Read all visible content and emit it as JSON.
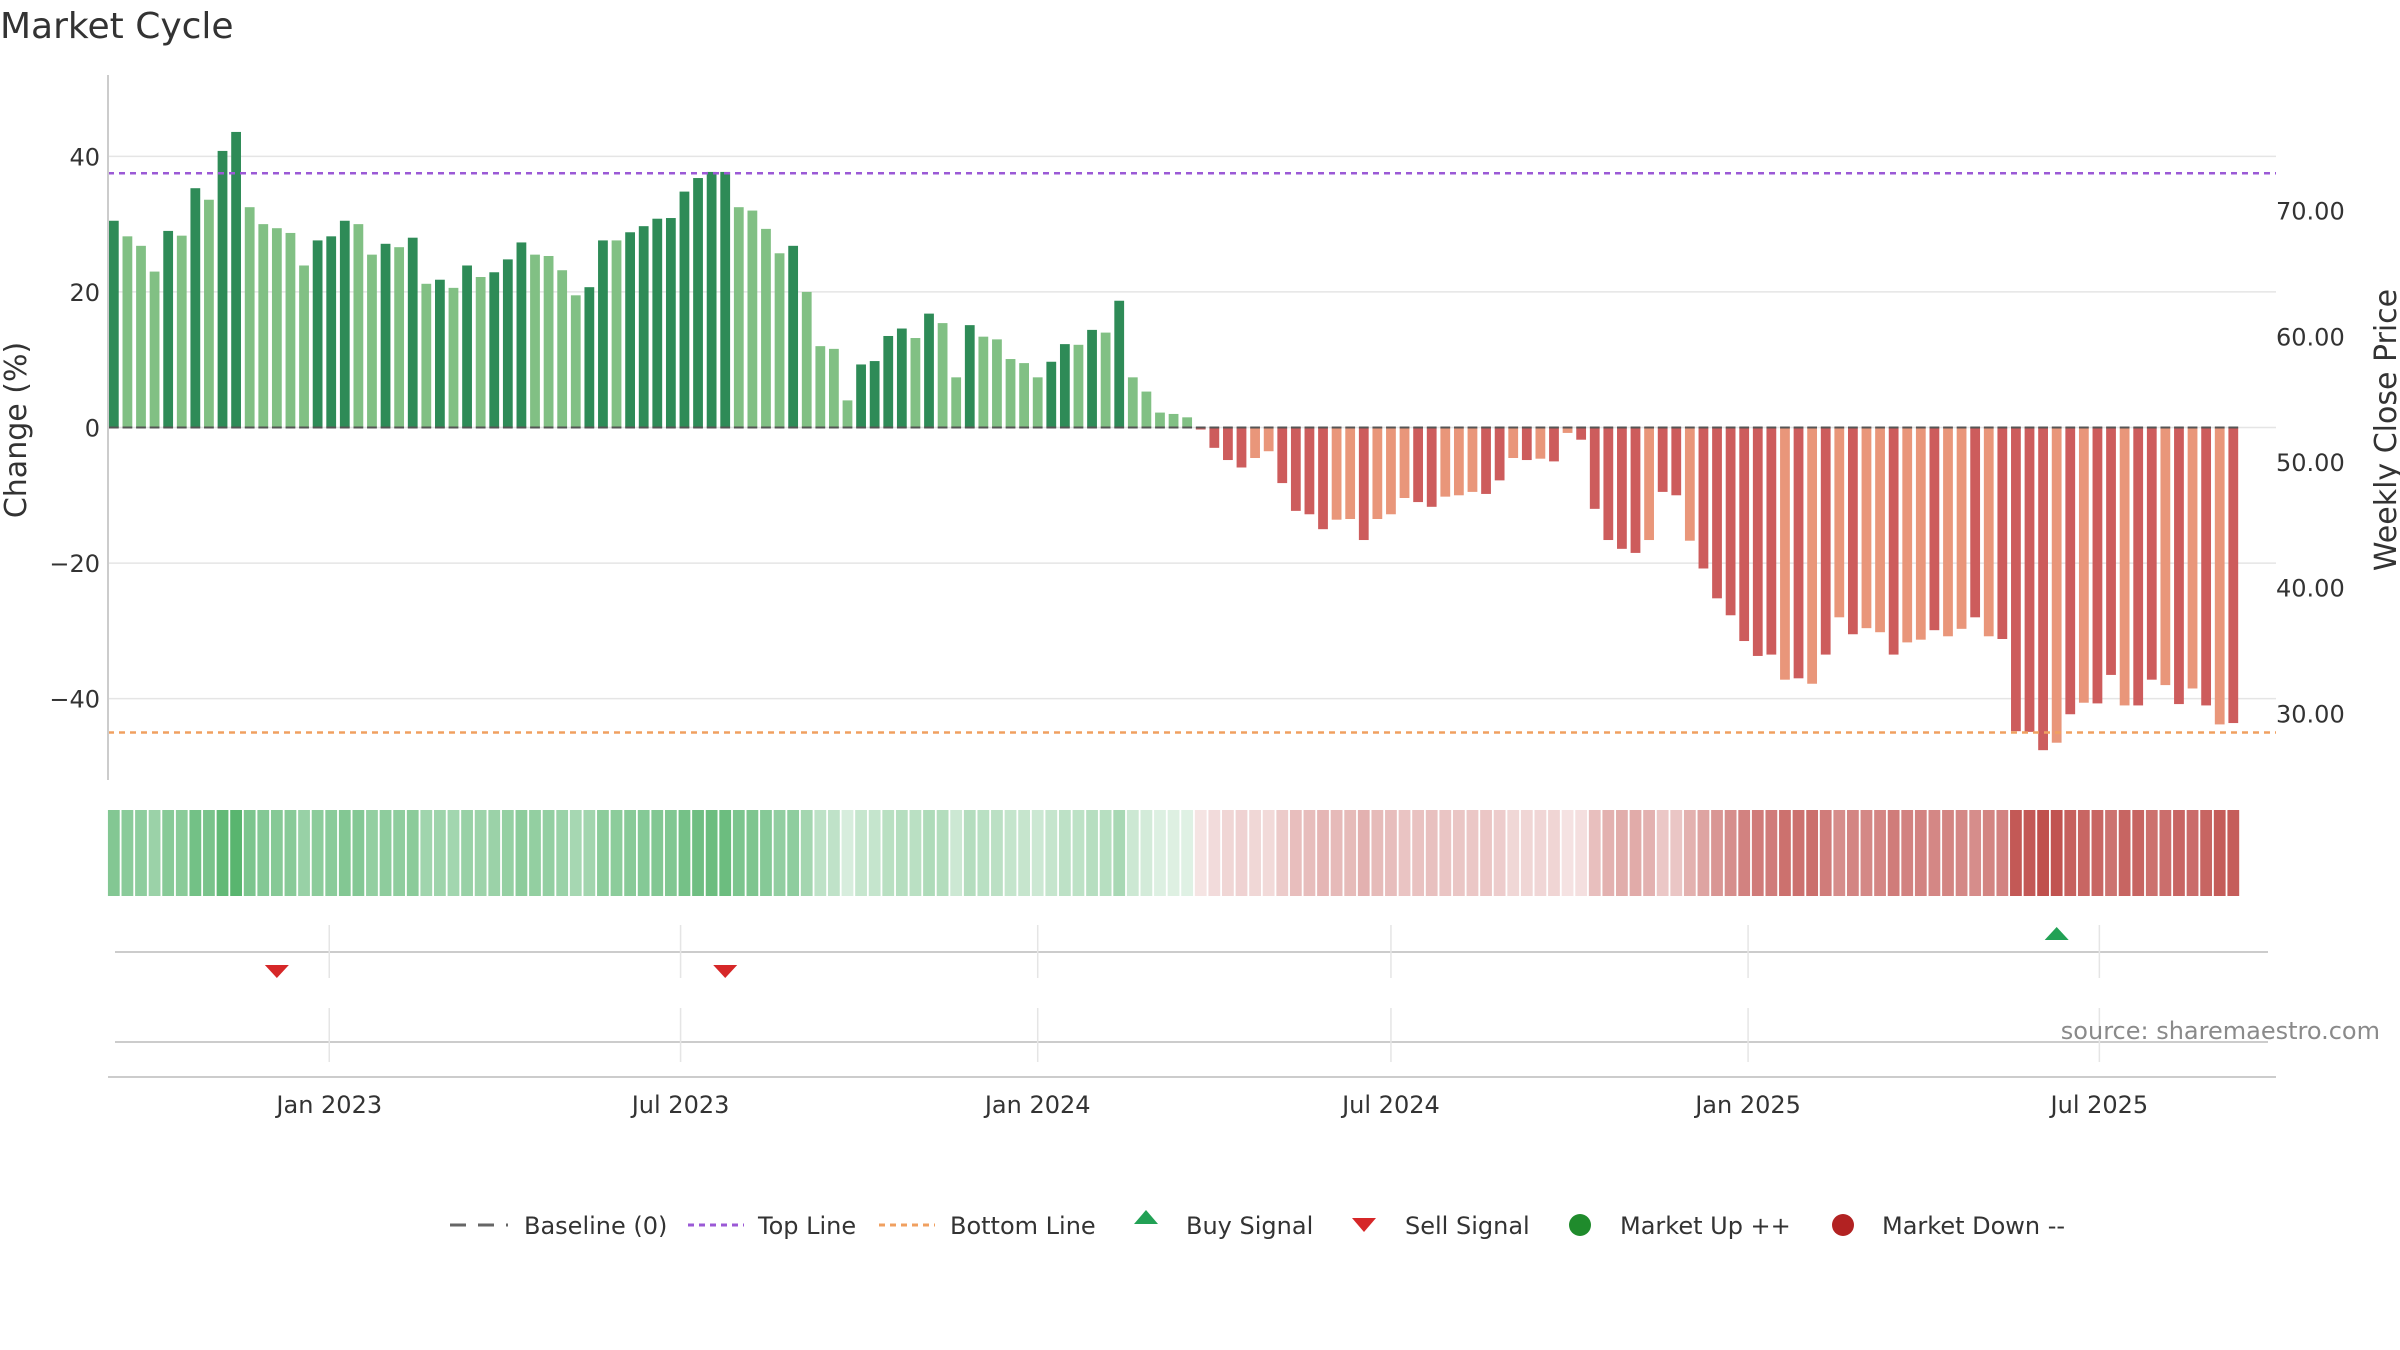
{
  "chart_data": {
    "type": "bar",
    "title": "Market Cycle",
    "ylabel_left": "Change (%)",
    "ylabel_right": "Weekly Close Price",
    "ylim": [
      -52,
      52
    ],
    "yticks": [
      40,
      20,
      0,
      -20,
      -40
    ],
    "ytick_labels": [
      "40",
      "20",
      "0",
      "−20",
      "−40"
    ],
    "right_ylim": [
      24.7,
      80.8
    ],
    "right_ticks": [
      70,
      60,
      50,
      40,
      30
    ],
    "right_tick_labels": [
      "70.00",
      "60.00",
      "50.00",
      "40.00",
      "30.00"
    ],
    "top_line": 37.5,
    "bottom_line": -45,
    "x_start": "2022-09-12",
    "x_step_days": 7,
    "xlim": [
      "2022-09-09",
      "2025-09-30"
    ],
    "x_ticks": [
      {
        "date": "2023-01-01",
        "label": "Jan 2023"
      },
      {
        "date": "2023-07-01",
        "label": "Jul 2023"
      },
      {
        "date": "2024-01-01",
        "label": "Jan 2024"
      },
      {
        "date": "2024-07-01",
        "label": "Jul 2024"
      },
      {
        "date": "2025-01-01",
        "label": "Jan 2025"
      },
      {
        "date": "2025-07-01",
        "label": "Jul 2025"
      }
    ],
    "values": [
      30.5,
      28.2,
      26.8,
      23.0,
      29.0,
      28.3,
      35.3,
      33.6,
      40.8,
      43.6,
      32.5,
      30.0,
      29.4,
      28.7,
      23.9,
      27.6,
      28.2,
      30.5,
      30.0,
      25.5,
      27.1,
      26.6,
      28.0,
      21.2,
      21.8,
      20.6,
      23.9,
      22.2,
      22.9,
      24.8,
      27.3,
      25.5,
      25.3,
      23.2,
      19.5,
      20.7,
      27.6,
      27.6,
      28.8,
      29.7,
      30.8,
      30.9,
      34.8,
      36.8,
      37.7,
      37.7,
      32.5,
      32.0,
      29.3,
      25.7,
      26.8,
      20.0,
      12.0,
      11.6,
      4.0,
      9.3,
      9.8,
      13.5,
      14.6,
      13.2,
      16.8,
      15.4,
      7.4,
      15.1,
      13.4,
      13.0,
      10.1,
      9.5,
      7.4,
      9.7,
      12.3,
      12.2,
      14.4,
      14.0,
      18.7,
      7.4,
      5.3,
      2.2,
      2.0,
      1.5,
      -0.3,
      -3.0,
      -4.8,
      -5.9,
      -4.5,
      -3.5,
      -8.2,
      -12.3,
      -12.8,
      -15.0,
      -13.6,
      -13.5,
      -16.6,
      -13.5,
      -12.8,
      -10.4,
      -11.0,
      -11.7,
      -10.2,
      -10.0,
      -9.5,
      -9.8,
      -7.8,
      -4.5,
      -4.8,
      -4.6,
      -5.0,
      -0.8,
      -1.8,
      -12.0,
      -16.6,
      -17.9,
      -18.5,
      -16.6,
      -9.5,
      -10.0,
      -16.7,
      -20.8,
      -25.2,
      -27.7,
      -31.5,
      -33.7,
      -33.5,
      -37.2,
      -37.0,
      -37.8,
      -33.5,
      -28.0,
      -30.5,
      -29.6,
      -30.2,
      -33.5,
      -31.7,
      -31.3,
      -29.9,
      -30.8,
      -29.7,
      -28.0,
      -30.8,
      -31.2,
      -44.8,
      -44.9,
      -47.6,
      -46.5,
      -42.3,
      -40.6,
      -40.7,
      -36.5,
      -41.0,
      -41.0,
      -37.2,
      -38.0,
      -40.8,
      -38.5,
      -41.0,
      -43.8,
      -43.6
    ],
    "shades": [
      2,
      1,
      1,
      1,
      2,
      1,
      2,
      1,
      2,
      2,
      1,
      1,
      1,
      1,
      1,
      2,
      2,
      2,
      1,
      1,
      2,
      1,
      2,
      1,
      2,
      1,
      2,
      1,
      2,
      2,
      2,
      1,
      1,
      1,
      1,
      2,
      2,
      1,
      2,
      2,
      2,
      2,
      2,
      2,
      2,
      2,
      1,
      1,
      1,
      1,
      2,
      1,
      1,
      1,
      1,
      2,
      2,
      2,
      2,
      1,
      2,
      1,
      1,
      2,
      1,
      1,
      1,
      1,
      1,
      2,
      2,
      1,
      2,
      1,
      2,
      1,
      1,
      1,
      1,
      1,
      2,
      2,
      2,
      2,
      1,
      1,
      2,
      2,
      2,
      2,
      1,
      1,
      2,
      1,
      1,
      1,
      2,
      2,
      1,
      1,
      1,
      2,
      2,
      1,
      2,
      1,
      2,
      1,
      2,
      2,
      2,
      2,
      2,
      1,
      2,
      2,
      1,
      2,
      2,
      2,
      2,
      2,
      2,
      1,
      2,
      1,
      2,
      1,
      2,
      1,
      1,
      2,
      1,
      1,
      2,
      1,
      1,
      2,
      1,
      2,
      2,
      2,
      2,
      1,
      2,
      1,
      2,
      2,
      1,
      2,
      2,
      1,
      2,
      1,
      2,
      1,
      2
    ],
    "sell_signals": [
      "2022-12-05",
      "2023-07-24"
    ],
    "buy_signals": [
      "2025-06-09"
    ],
    "source": "source: sharemaestro.com",
    "legend": [
      {
        "type": "dash",
        "label": "Baseline (0)"
      },
      {
        "type": "topline",
        "label": "Top Line"
      },
      {
        "type": "bottomline",
        "label": "Bottom Line"
      },
      {
        "type": "buy",
        "label": "Buy Signal"
      },
      {
        "type": "sell",
        "label": "Sell Signal"
      },
      {
        "type": "marketup",
        "label": "Market Up ++"
      },
      {
        "type": "marketdown",
        "label": "Market Down --"
      }
    ],
    "colors": {
      "green_dark": "#2e8b57",
      "green_light": "#81c084",
      "red_dark": "#cd5c5c",
      "red_light": "#e9967a",
      "top_line": "#9b59d6",
      "bottom_line": "#f0a060",
      "baseline": "#555555",
      "grid": "#e5e5e5",
      "buy": "#22a155",
      "sell": "#d62728",
      "market_up": "#1f8b2c",
      "market_down": "#b22222"
    }
  }
}
